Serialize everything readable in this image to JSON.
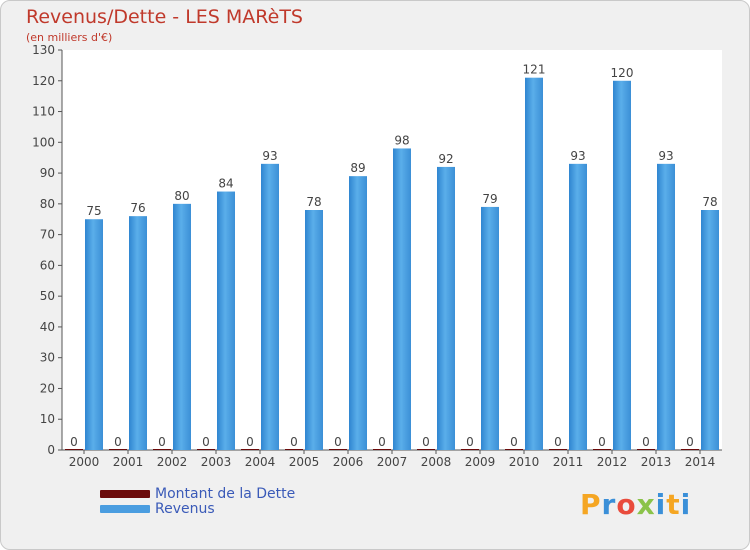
{
  "chart_data": {
    "type": "bar",
    "title": "Revenus/Dette - LES MARèTS",
    "subtitle": "(en milliers d'€)",
    "categories": [
      "2000",
      "2001",
      "2002",
      "2003",
      "2004",
      "2005",
      "2006",
      "2007",
      "2008",
      "2009",
      "2010",
      "2011",
      "2012",
      "2013",
      "2014"
    ],
    "series": [
      {
        "name": "Montant de la Dette",
        "color": "#6b0a0a",
        "values": [
          0,
          0,
          0,
          0,
          0,
          0,
          0,
          0,
          0,
          0,
          0,
          0,
          0,
          0,
          0
        ]
      },
      {
        "name": "Revenus",
        "color": "#4a9de0",
        "values": [
          75,
          76,
          80,
          84,
          93,
          78,
          89,
          98,
          92,
          79,
          121,
          93,
          120,
          93,
          78
        ]
      }
    ],
    "ylim": [
      0,
      130
    ],
    "yticks": [
      0,
      10,
      20,
      30,
      40,
      50,
      60,
      70,
      80,
      90,
      100,
      110,
      120,
      130
    ],
    "grid": false,
    "legend_position": "bottom-left"
  },
  "logo": {
    "letters": [
      "P",
      "r",
      "o",
      "x",
      "i",
      "t",
      "i"
    ],
    "colors": [
      "#f5a623",
      "#3a8fd8",
      "#e94b3c",
      "#8bc34a",
      "#3a8fd8",
      "#f5a623",
      "#3a8fd8"
    ]
  }
}
